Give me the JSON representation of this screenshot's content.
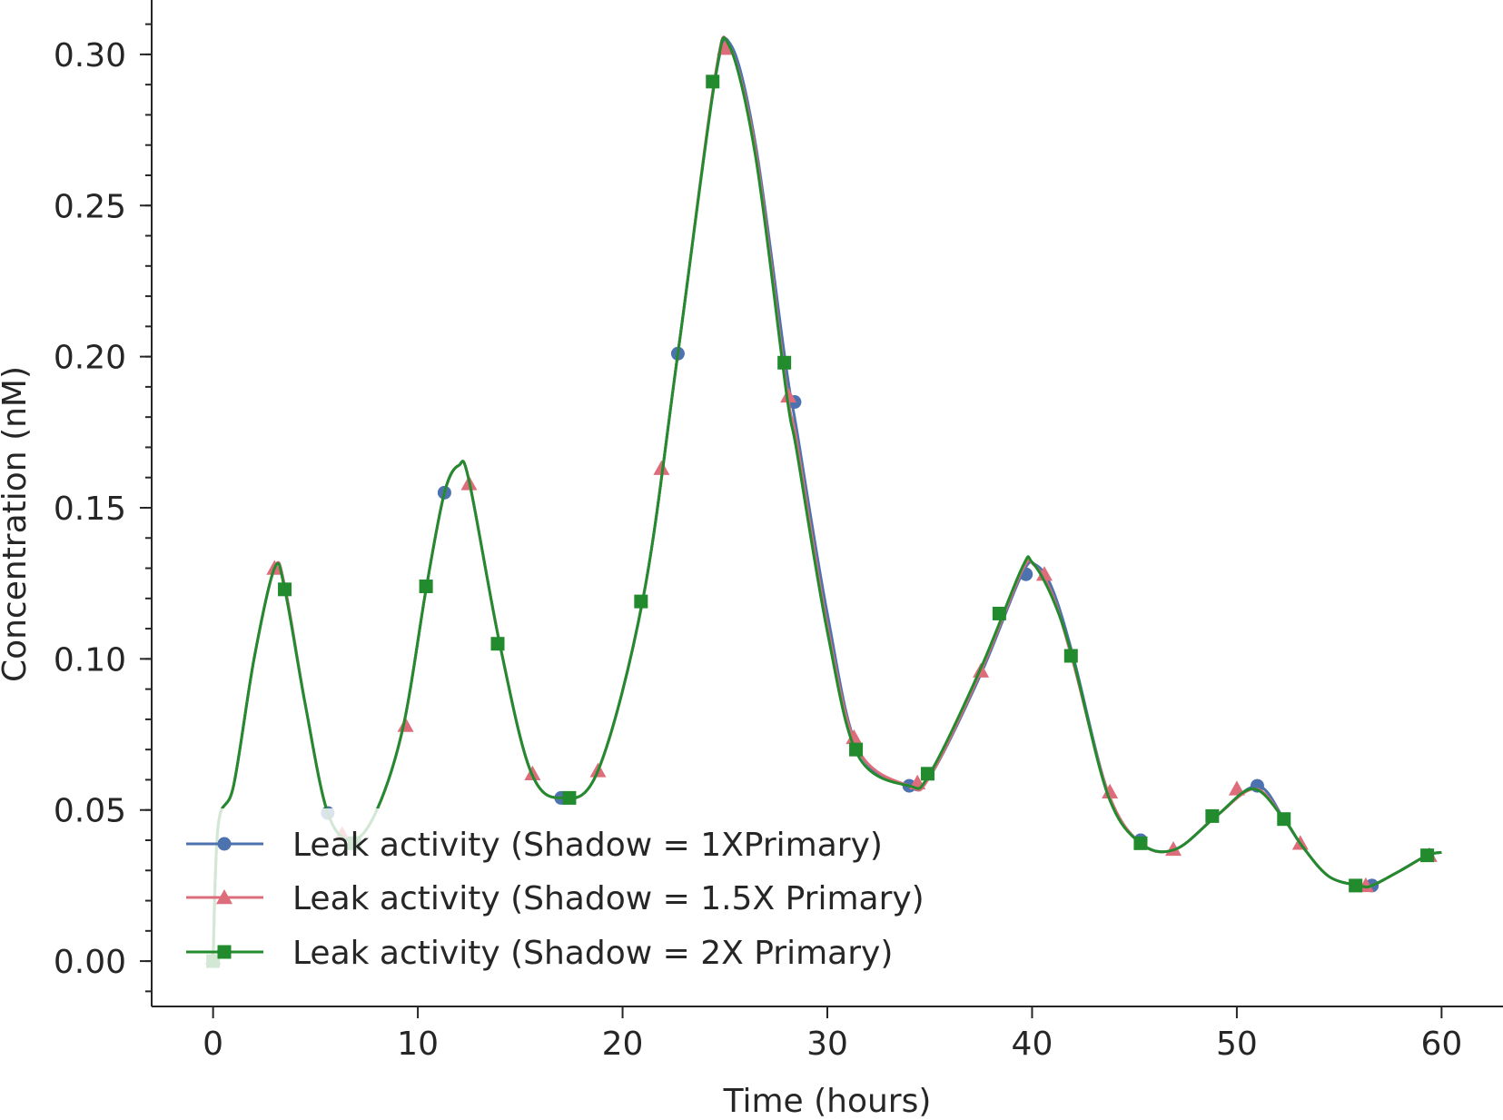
{
  "chart_data": {
    "type": "line",
    "title": "",
    "xlabel": "Time (hours)",
    "ylabel": "Concentration (nM)",
    "xlim": [
      -3,
      63
    ],
    "ylim": [
      -0.015,
      0.318
    ],
    "xticks": [
      0,
      10,
      20,
      30,
      40,
      50,
      60
    ],
    "xtick_labels": [
      "0",
      "10",
      "20",
      "30",
      "40",
      "50",
      "60"
    ],
    "yticks": [
      0.0,
      0.05,
      0.1,
      0.15,
      0.2,
      0.25,
      0.3
    ],
    "ytick_labels": [
      "0.00",
      "0.05",
      "0.10",
      "0.15",
      "0.20",
      "0.25",
      "0.30"
    ],
    "y_minor_step": 0.01,
    "grid": false,
    "legend_position": "lower-left",
    "series": [
      {
        "name": "Leak activity (Shadow = 1XPrimary)",
        "color": "#4c72b0",
        "marker": "circle",
        "curve": [
          [
            0,
            0
          ],
          [
            0.25,
            0.045
          ],
          [
            1,
            0.058
          ],
          [
            2,
            0.1
          ],
          [
            3,
            0.13
          ],
          [
            3.5,
            0.124
          ],
          [
            4.5,
            0.085
          ],
          [
            5.6,
            0.049
          ],
          [
            6.8,
            0.04
          ],
          [
            8,
            0.05
          ],
          [
            9.3,
            0.078
          ],
          [
            10.4,
            0.123
          ],
          [
            11.3,
            0.155
          ],
          [
            12,
            0.164
          ],
          [
            12.5,
            0.159
          ],
          [
            14,
            0.105
          ],
          [
            15.5,
            0.063
          ],
          [
            17,
            0.054
          ],
          [
            18.8,
            0.063
          ],
          [
            21,
            0.12
          ],
          [
            22.7,
            0.201
          ],
          [
            24.5,
            0.291
          ],
          [
            25.3,
            0.303
          ],
          [
            26.5,
            0.27
          ],
          [
            28,
            0.196
          ],
          [
            28.5,
            0.176
          ],
          [
            30,
            0.115
          ],
          [
            31.5,
            0.07
          ],
          [
            33.9,
            0.058
          ],
          [
            35,
            0.061
          ],
          [
            37.5,
            0.095
          ],
          [
            39.5,
            0.128
          ],
          [
            40.2,
            0.131
          ],
          [
            41,
            0.123
          ],
          [
            42,
            0.101
          ],
          [
            43.7,
            0.056
          ],
          [
            45.3,
            0.039
          ],
          [
            47,
            0.037
          ],
          [
            49,
            0.048
          ],
          [
            51,
            0.058
          ],
          [
            52.3,
            0.047
          ],
          [
            53.2,
            0.038
          ],
          [
            54.5,
            0.028
          ],
          [
            56,
            0.025
          ],
          [
            56.6,
            0.025
          ],
          [
            58,
            0.03
          ],
          [
            59.3,
            0.035
          ],
          [
            60,
            0.036
          ]
        ],
        "markers": [
          [
            0.5,
            0.003
          ],
          [
            5.6,
            0.049
          ],
          [
            11.3,
            0.155
          ],
          [
            17,
            0.054
          ],
          [
            22.7,
            0.201
          ],
          [
            28.4,
            0.185
          ],
          [
            34,
            0.058
          ],
          [
            39.7,
            0.128
          ],
          [
            45.3,
            0.04
          ],
          [
            51,
            0.058
          ],
          [
            56.6,
            0.025
          ]
        ]
      },
      {
        "name": "Leak activity (Shadow = 1.5X Primary)",
        "color": "#dd6d7b",
        "marker": "triangle",
        "curve": [
          [
            0,
            0
          ],
          [
            0.25,
            0.045
          ],
          [
            1,
            0.058
          ],
          [
            2,
            0.1
          ],
          [
            3,
            0.13
          ],
          [
            3.5,
            0.124
          ],
          [
            4.5,
            0.085
          ],
          [
            5.6,
            0.049
          ],
          [
            6.8,
            0.04
          ],
          [
            8,
            0.05
          ],
          [
            9.3,
            0.078
          ],
          [
            10.4,
            0.123
          ],
          [
            11.3,
            0.155
          ],
          [
            12,
            0.164
          ],
          [
            12.5,
            0.159
          ],
          [
            14,
            0.105
          ],
          [
            15.5,
            0.063
          ],
          [
            17,
            0.054
          ],
          [
            18.8,
            0.063
          ],
          [
            21,
            0.12
          ],
          [
            22.7,
            0.201
          ],
          [
            24.5,
            0.292
          ],
          [
            25.2,
            0.303
          ],
          [
            26.5,
            0.268
          ],
          [
            28,
            0.19
          ],
          [
            28.5,
            0.172
          ],
          [
            30,
            0.111
          ],
          [
            31.5,
            0.07
          ],
          [
            34,
            0.058
          ],
          [
            35,
            0.061
          ],
          [
            37.5,
            0.096
          ],
          [
            39.5,
            0.129
          ],
          [
            40.1,
            0.131
          ],
          [
            41,
            0.121
          ],
          [
            42,
            0.099
          ],
          [
            43.7,
            0.056
          ],
          [
            45.3,
            0.039
          ],
          [
            47,
            0.037
          ],
          [
            49,
            0.048
          ],
          [
            50.9,
            0.057
          ],
          [
            52.3,
            0.047
          ],
          [
            53.2,
            0.038
          ],
          [
            54.5,
            0.028
          ],
          [
            56,
            0.025
          ],
          [
            56.6,
            0.025
          ],
          [
            58,
            0.03
          ],
          [
            59.3,
            0.035
          ],
          [
            60,
            0.036
          ]
        ],
        "markers": [
          [
            0,
            0.001
          ],
          [
            3,
            0.13
          ],
          [
            6.3,
            0.042
          ],
          [
            9.4,
            0.078
          ],
          [
            12.5,
            0.158
          ],
          [
            15.6,
            0.062
          ],
          [
            18.8,
            0.063
          ],
          [
            21.9,
            0.163
          ],
          [
            25,
            0.302
          ],
          [
            28.1,
            0.187
          ],
          [
            31.3,
            0.074
          ],
          [
            34.4,
            0.059
          ],
          [
            37.5,
            0.096
          ],
          [
            40.6,
            0.128
          ],
          [
            43.8,
            0.056
          ],
          [
            46.9,
            0.037
          ],
          [
            50,
            0.057
          ],
          [
            53.1,
            0.039
          ],
          [
            56.3,
            0.025
          ],
          [
            59.4,
            0.035
          ]
        ]
      },
      {
        "name": "Leak activity (Shadow = 2X Primary)",
        "color": "#228b2e",
        "marker": "square",
        "curve": [
          [
            0,
            0
          ],
          [
            0.25,
            0.045
          ],
          [
            1,
            0.058
          ],
          [
            2,
            0.1
          ],
          [
            3,
            0.13
          ],
          [
            3.5,
            0.123
          ],
          [
            4.5,
            0.085
          ],
          [
            5.6,
            0.049
          ],
          [
            6.8,
            0.04
          ],
          [
            8,
            0.05
          ],
          [
            9.3,
            0.078
          ],
          [
            10.4,
            0.123
          ],
          [
            11.3,
            0.155
          ],
          [
            12,
            0.164
          ],
          [
            12.5,
            0.159
          ],
          [
            14,
            0.105
          ],
          [
            15.5,
            0.063
          ],
          [
            17,
            0.054
          ],
          [
            18.8,
            0.063
          ],
          [
            21,
            0.12
          ],
          [
            22.7,
            0.201
          ],
          [
            24.5,
            0.291
          ],
          [
            25.2,
            0.303
          ],
          [
            26.5,
            0.266
          ],
          [
            28,
            0.188
          ],
          [
            28.5,
            0.169
          ],
          [
            30,
            0.109
          ],
          [
            31.5,
            0.068
          ],
          [
            34,
            0.058
          ],
          [
            35,
            0.062
          ],
          [
            37.5,
            0.097
          ],
          [
            39.5,
            0.13
          ],
          [
            40,
            0.132
          ],
          [
            41,
            0.12
          ],
          [
            42,
            0.1
          ],
          [
            43.7,
            0.055
          ],
          [
            45.3,
            0.039
          ],
          [
            47,
            0.037
          ],
          [
            49,
            0.048
          ],
          [
            50.8,
            0.057
          ],
          [
            52.3,
            0.047
          ],
          [
            53.2,
            0.038
          ],
          [
            54.5,
            0.028
          ],
          [
            56,
            0.025
          ],
          [
            56.6,
            0.025
          ],
          [
            58,
            0.03
          ],
          [
            59.3,
            0.035
          ],
          [
            60,
            0.036
          ]
        ],
        "markers": [
          [
            0,
            0
          ],
          [
            3.5,
            0.123
          ],
          [
            6.9,
            0.039
          ],
          [
            10.4,
            0.124
          ],
          [
            13.9,
            0.105
          ],
          [
            17.4,
            0.054
          ],
          [
            20.9,
            0.119
          ],
          [
            24.4,
            0.291
          ],
          [
            27.9,
            0.198
          ],
          [
            31.4,
            0.07
          ],
          [
            34.9,
            0.062
          ],
          [
            38.4,
            0.115
          ],
          [
            41.9,
            0.101
          ],
          [
            45.3,
            0.039
          ],
          [
            48.8,
            0.048
          ],
          [
            52.3,
            0.047
          ],
          [
            55.8,
            0.025
          ],
          [
            59.3,
            0.035
          ]
        ]
      }
    ]
  }
}
